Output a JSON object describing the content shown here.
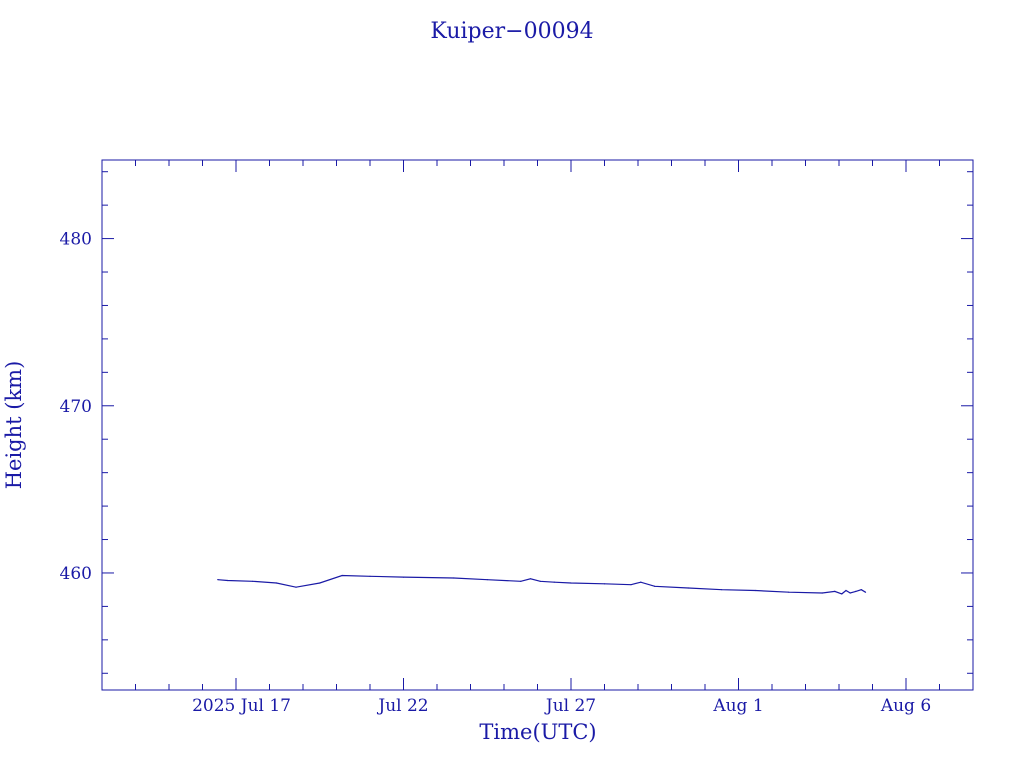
{
  "chart_data": {
    "type": "line",
    "title": "Kuiper−00094",
    "xlabel": "Time(UTC)",
    "ylabel": "Height (km)",
    "color": "#1a1aa6",
    "xlim": [
      "2025-07-13T00:00",
      "2025-08-08T00:00"
    ],
    "ylim": [
      453.0,
      484.7
    ],
    "grid": false,
    "y_ticks": [
      460,
      470,
      480
    ],
    "y_tick_labels": [
      "460",
      "470",
      "480"
    ],
    "x_ticks": [
      {
        "date": "2025-07-17",
        "label": "2025 Jul 17"
      },
      {
        "date": "2025-07-22",
        "label": "Jul 22"
      },
      {
        "date": "2025-07-27",
        "label": "Jul 27"
      },
      {
        "date": "2025-08-01",
        "label": "Aug  1"
      },
      {
        "date": "2025-08-06",
        "label": "Aug  6"
      }
    ],
    "series": [
      {
        "x": [
          "2025-07-16T11:00",
          "2025-07-16T18:00",
          "2025-07-17T12:00",
          "2025-07-18T05:00",
          "2025-07-18T19:00",
          "2025-07-19T12:00",
          "2025-07-20T04:00",
          "2025-07-21T00:00",
          "2025-07-22T00:00",
          "2025-07-23T12:00",
          "2025-07-24T12:00",
          "2025-07-25T12:00",
          "2025-07-25T19:00",
          "2025-07-26T02:00",
          "2025-07-26T12:00",
          "2025-07-27T00:00",
          "2025-07-28T00:00",
          "2025-07-28T19:00",
          "2025-07-29T02:00",
          "2025-07-29T12:00",
          "2025-07-30T12:00",
          "2025-07-31T12:00",
          "2025-08-01T12:00",
          "2025-08-02T12:00",
          "2025-08-03T12:00",
          "2025-08-03T21:00",
          "2025-08-04T02:00",
          "2025-08-04T05:00",
          "2025-08-04T08:00",
          "2025-08-04T12:00",
          "2025-08-04T16:00",
          "2025-08-04T19:00"
        ],
        "y": [
          459.6,
          459.55,
          459.5,
          459.4,
          459.15,
          459.4,
          459.85,
          459.8,
          459.75,
          459.7,
          459.6,
          459.5,
          459.65,
          459.5,
          459.45,
          459.4,
          459.35,
          459.3,
          459.45,
          459.2,
          459.1,
          459.0,
          458.95,
          458.85,
          458.8,
          458.9,
          458.75,
          458.95,
          458.8,
          458.9,
          459.0,
          458.85
        ]
      }
    ]
  }
}
